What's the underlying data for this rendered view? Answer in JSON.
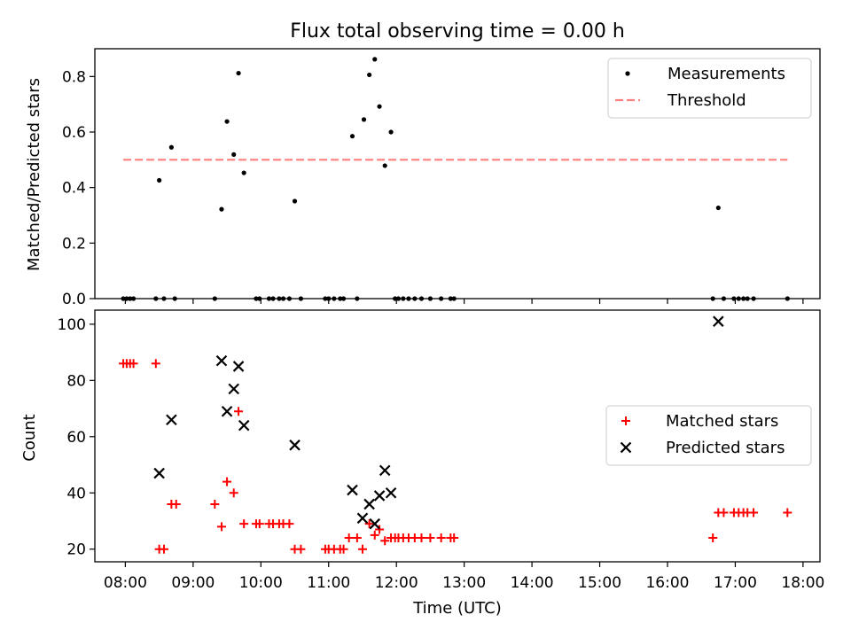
{
  "chart_data": [
    {
      "type": "scatter",
      "title": "Flux total observing time = 0.00 h",
      "xlabel": "",
      "ylabel": "Matched/Predicted stars",
      "ylim": [
        0,
        0.9
      ],
      "yticks": [
        0.0,
        0.2,
        0.4,
        0.6,
        0.8
      ],
      "ytick_labels": [
        "0.0",
        "0.2",
        "0.4",
        "0.6",
        "0.8"
      ],
      "xlim_hours": [
        7.55,
        18.25
      ],
      "xticks_hours": [
        8,
        9,
        10,
        11,
        12,
        13,
        14,
        15,
        16,
        17,
        18
      ],
      "legend_position": "top-right",
      "legend": [
        "Measurements",
        "Threshold"
      ],
      "series": [
        {
          "name": "Measurements",
          "marker": "dot",
          "color": "#000000",
          "points": [
            [
              7.97,
              0
            ],
            [
              8.02,
              0
            ],
            [
              8.07,
              0
            ],
            [
              8.12,
              0
            ],
            [
              8.45,
              0
            ],
            [
              8.57,
              0
            ],
            [
              8.73,
              0
            ],
            [
              9.32,
              0
            ],
            [
              9.93,
              0
            ],
            [
              9.98,
              0
            ],
            [
              10.12,
              0
            ],
            [
              10.18,
              0
            ],
            [
              10.27,
              0
            ],
            [
              10.33,
              0
            ],
            [
              10.42,
              0
            ],
            [
              10.59,
              0
            ],
            [
              10.95,
              0
            ],
            [
              11.0,
              0
            ],
            [
              11.08,
              0
            ],
            [
              11.17,
              0
            ],
            [
              11.22,
              0
            ],
            [
              11.42,
              0
            ],
            [
              11.98,
              0
            ],
            [
              12.03,
              0
            ],
            [
              12.1,
              0
            ],
            [
              12.18,
              0
            ],
            [
              12.27,
              0
            ],
            [
              12.37,
              0
            ],
            [
              12.5,
              0
            ],
            [
              12.66,
              0
            ],
            [
              12.8,
              0
            ],
            [
              12.85,
              0
            ],
            [
              16.67,
              0
            ],
            [
              16.83,
              0
            ],
            [
              16.98,
              0
            ],
            [
              17.05,
              0
            ],
            [
              17.12,
              0
            ],
            [
              17.18,
              0
            ],
            [
              17.27,
              0
            ],
            [
              17.77,
              0
            ],
            [
              8.5,
              0.426
            ],
            [
              8.68,
              0.545
            ],
            [
              9.42,
              0.322
            ],
            [
              9.5,
              0.638
            ],
            [
              9.6,
              0.519
            ],
            [
              9.67,
              0.812
            ],
            [
              9.75,
              0.453
            ],
            [
              10.5,
              0.351
            ],
            [
              11.35,
              0.585
            ],
            [
              11.52,
              0.645
            ],
            [
              11.6,
              0.806
            ],
            [
              11.68,
              0.862
            ],
            [
              11.75,
              0.692
            ],
            [
              11.83,
              0.479
            ],
            [
              11.92,
              0.6
            ],
            [
              16.75,
              0.327
            ]
          ]
        },
        {
          "name": "Threshold",
          "style": "dashed",
          "color": "#ff7f7f",
          "points": [
            [
              7.97,
              0.5
            ],
            [
              17.77,
              0.5
            ]
          ]
        }
      ]
    },
    {
      "type": "scatter",
      "title": "",
      "xlabel": "Time (UTC)",
      "ylabel": "Count",
      "ylim": [
        15.5,
        105
      ],
      "yticks": [
        20,
        40,
        60,
        80,
        100
      ],
      "ytick_labels": [
        "20",
        "40",
        "60",
        "80",
        "100"
      ],
      "xlim_hours": [
        7.55,
        18.25
      ],
      "xticks_hours": [
        8,
        9,
        10,
        11,
        12,
        13,
        14,
        15,
        16,
        17,
        18
      ],
      "xtick_labels": [
        "08:00",
        "09:00",
        "10:00",
        "11:00",
        "12:00",
        "13:00",
        "14:00",
        "15:00",
        "16:00",
        "17:00",
        "18:00"
      ],
      "legend_position": "center-right",
      "legend": [
        "Matched stars",
        "Predicted stars"
      ],
      "series": [
        {
          "name": "Matched stars",
          "marker": "plus",
          "color": "#ff0000",
          "points": [
            [
              7.97,
              86
            ],
            [
              8.02,
              86
            ],
            [
              8.07,
              86
            ],
            [
              8.12,
              86
            ],
            [
              8.45,
              86
            ],
            [
              8.5,
              20
            ],
            [
              8.57,
              20
            ],
            [
              8.68,
              36
            ],
            [
              8.75,
              36
            ],
            [
              9.32,
              36
            ],
            [
              9.42,
              28
            ],
            [
              9.5,
              44
            ],
            [
              9.6,
              40
            ],
            [
              9.67,
              69
            ],
            [
              9.75,
              29
            ],
            [
              9.93,
              29
            ],
            [
              9.98,
              29
            ],
            [
              10.12,
              29
            ],
            [
              10.18,
              29
            ],
            [
              10.27,
              29
            ],
            [
              10.33,
              29
            ],
            [
              10.42,
              29
            ],
            [
              10.5,
              20
            ],
            [
              10.59,
              20
            ],
            [
              10.95,
              20
            ],
            [
              11.0,
              20
            ],
            [
              11.08,
              20
            ],
            [
              11.17,
              20
            ],
            [
              11.22,
              20
            ],
            [
              11.3,
              24
            ],
            [
              11.42,
              24
            ],
            [
              11.5,
              20
            ],
            [
              11.6,
              29
            ],
            [
              11.68,
              25
            ],
            [
              11.75,
              27
            ],
            [
              11.83,
              23
            ],
            [
              11.92,
              24
            ],
            [
              11.98,
              24
            ],
            [
              12.03,
              24
            ],
            [
              12.1,
              24
            ],
            [
              12.18,
              24
            ],
            [
              12.27,
              24
            ],
            [
              12.37,
              24
            ],
            [
              12.5,
              24
            ],
            [
              12.66,
              24
            ],
            [
              12.8,
              24
            ],
            [
              12.85,
              24
            ],
            [
              16.67,
              24
            ],
            [
              16.75,
              33
            ],
            [
              16.83,
              33
            ],
            [
              16.98,
              33
            ],
            [
              17.05,
              33
            ],
            [
              17.12,
              33
            ],
            [
              17.18,
              33
            ],
            [
              17.27,
              33
            ],
            [
              17.77,
              33
            ]
          ]
        },
        {
          "name": "Predicted stars",
          "marker": "x",
          "color": "#000000",
          "points": [
            [
              8.5,
              47
            ],
            [
              8.68,
              66
            ],
            [
              9.42,
              87
            ],
            [
              9.5,
              69
            ],
            [
              9.6,
              77
            ],
            [
              9.67,
              85
            ],
            [
              9.75,
              64
            ],
            [
              10.5,
              57
            ],
            [
              11.35,
              41
            ],
            [
              11.5,
              31
            ],
            [
              11.6,
              36
            ],
            [
              11.68,
              29
            ],
            [
              11.75,
              39
            ],
            [
              11.83,
              48
            ],
            [
              11.92,
              40
            ],
            [
              16.75,
              101
            ]
          ]
        }
      ]
    }
  ]
}
